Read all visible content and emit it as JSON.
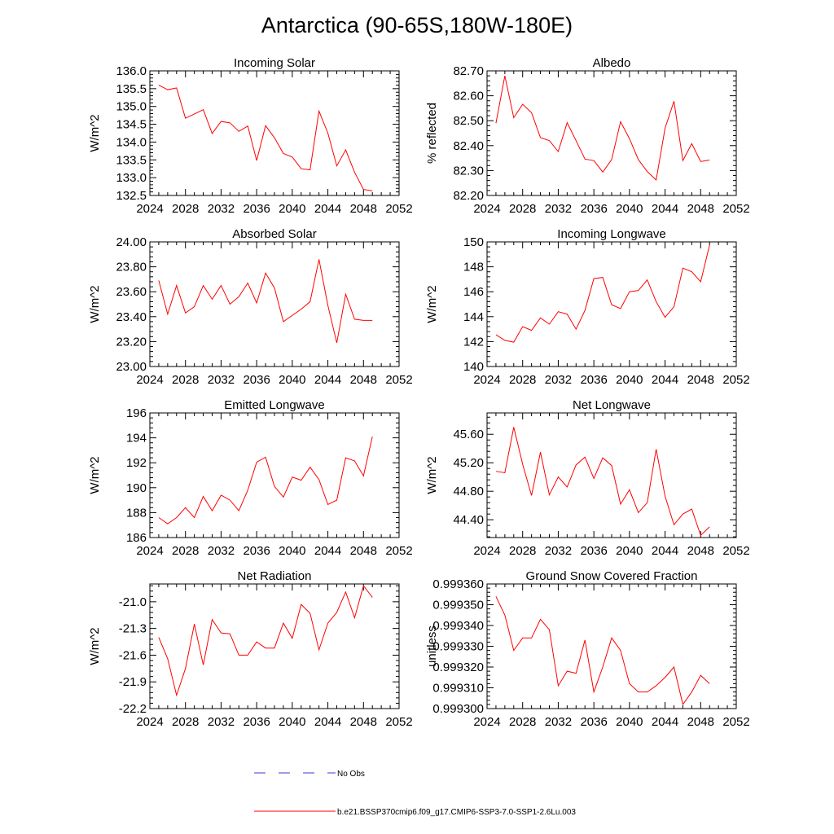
{
  "page_title": "Antarctica (90-65S,180W-180E)",
  "legend": {
    "obs_label": "No Obs",
    "obs_color": "#3b3bd1",
    "model_label": "b.e21.BSSP370cmip6.f09_g17.CMIP6-SSP3-7.0-SSP1-2.6Lu.003",
    "model_color": "#ff0000"
  },
  "chart_data": [
    {
      "type": "line",
      "title": "Incoming Solar",
      "xlabel": "",
      "ylabel": "W/m^2",
      "xlim": [
        2024,
        2052
      ],
      "ylim": [
        132.5,
        136.0
      ],
      "x_ticks": [
        2024,
        2028,
        2032,
        2036,
        2040,
        2044,
        2048,
        2052
      ],
      "x_tick_labels": [
        "2024",
        "2028",
        "2032",
        "2036",
        "2040",
        "2044",
        "2048",
        "2052"
      ],
      "y_ticks": [
        132.5,
        133.0,
        133.5,
        134.0,
        134.5,
        135.0,
        135.5,
        136.0
      ],
      "y_tick_labels": [
        "132.5",
        "133.0",
        "133.5",
        "134.0",
        "134.5",
        "135.0",
        "135.5",
        "136.0"
      ],
      "grid": false,
      "x": [
        2025,
        2026,
        2027,
        2028,
        2029,
        2030,
        2031,
        2032,
        2033,
        2034,
        2035,
        2036,
        2037,
        2038,
        2039,
        2040,
        2041,
        2042,
        2043,
        2044,
        2045,
        2046,
        2047,
        2048,
        2049
      ],
      "series": [
        {
          "color": "#ff0000",
          "values": [
            135.6,
            135.47,
            135.52,
            134.67,
            134.79,
            134.91,
            134.24,
            134.58,
            134.54,
            134.3,
            134.45,
            133.48,
            134.46,
            134.12,
            133.68,
            133.58,
            133.25,
            133.22,
            134.87,
            134.25,
            133.33,
            133.78,
            133.15,
            132.67,
            132.63
          ]
        }
      ]
    },
    {
      "type": "line",
      "title": "Albedo",
      "xlabel": "",
      "ylabel": "% reflected",
      "xlim": [
        2024,
        2052
      ],
      "ylim": [
        82.2,
        82.7
      ],
      "x_ticks": [
        2024,
        2028,
        2032,
        2036,
        2040,
        2044,
        2048,
        2052
      ],
      "x_tick_labels": [
        "2024",
        "2028",
        "2032",
        "2036",
        "2040",
        "2044",
        "2048",
        "2052"
      ],
      "y_ticks": [
        82.2,
        82.3,
        82.4,
        82.5,
        82.6,
        82.7
      ],
      "y_tick_labels": [
        "82.20",
        "82.30",
        "82.40",
        "82.50",
        "82.60",
        "82.70"
      ],
      "grid": false,
      "x": [
        2025,
        2026,
        2027,
        2028,
        2029,
        2030,
        2031,
        2032,
        2033,
        2034,
        2035,
        2036,
        2037,
        2038,
        2039,
        2040,
        2041,
        2042,
        2043,
        2044,
        2045,
        2046,
        2047,
        2048,
        2049
      ],
      "series": [
        {
          "color": "#ff0000",
          "values": [
            82.49,
            82.68,
            82.512,
            82.566,
            82.532,
            82.432,
            82.42,
            82.376,
            82.492,
            82.42,
            82.346,
            82.34,
            82.294,
            82.344,
            82.496,
            82.428,
            82.344,
            82.296,
            82.262,
            82.47,
            82.578,
            82.34,
            82.408,
            82.336,
            82.342
          ]
        }
      ]
    },
    {
      "type": "line",
      "title": "Absorbed Solar",
      "xlabel": "",
      "ylabel": "W/m^2",
      "xlim": [
        2024,
        2052
      ],
      "ylim": [
        23.0,
        24.0
      ],
      "x_ticks": [
        2024,
        2028,
        2032,
        2036,
        2040,
        2044,
        2048,
        2052
      ],
      "x_tick_labels": [
        "2024",
        "2028",
        "2032",
        "2036",
        "2040",
        "2044",
        "2048",
        "2052"
      ],
      "y_ticks": [
        23.0,
        23.2,
        23.4,
        23.6,
        23.8,
        24.0
      ],
      "y_tick_labels": [
        "23.00",
        "23.20",
        "23.40",
        "23.60",
        "23.80",
        "24.00"
      ],
      "grid": false,
      "x": [
        2025,
        2026,
        2027,
        2028,
        2029,
        2030,
        2031,
        2032,
        2033,
        2034,
        2035,
        2036,
        2037,
        2038,
        2039,
        2040,
        2041,
        2042,
        2043,
        2044,
        2045,
        2046,
        2047,
        2048,
        2049
      ],
      "series": [
        {
          "color": "#ff0000",
          "values": [
            23.69,
            23.42,
            23.65,
            23.43,
            23.48,
            23.65,
            23.54,
            23.65,
            23.5,
            23.56,
            23.67,
            23.51,
            23.75,
            23.63,
            23.36,
            23.41,
            23.46,
            23.52,
            23.86,
            23.49,
            23.19,
            23.58,
            23.38,
            23.37,
            23.37
          ]
        }
      ]
    },
    {
      "type": "line",
      "title": "Incoming Longwave",
      "xlabel": "",
      "ylabel": "W/m^2",
      "xlim": [
        2024,
        2052
      ],
      "ylim": [
        140,
        150
      ],
      "x_ticks": [
        2024,
        2028,
        2032,
        2036,
        2040,
        2044,
        2048,
        2052
      ],
      "x_tick_labels": [
        "2024",
        "2028",
        "2032",
        "2036",
        "2040",
        "2044",
        "2048",
        "2052"
      ],
      "y_ticks": [
        140,
        142,
        144,
        146,
        148,
        150
      ],
      "y_tick_labels": [
        "140",
        "142",
        "144",
        "146",
        "148",
        "150"
      ],
      "grid": false,
      "x": [
        2025,
        2026,
        2027,
        2028,
        2029,
        2030,
        2031,
        2032,
        2033,
        2034,
        2035,
        2036,
        2037,
        2038,
        2039,
        2040,
        2041,
        2042,
        2043,
        2044,
        2045,
        2046,
        2047,
        2048,
        2049
      ],
      "series": [
        {
          "color": "#ff0000",
          "values": [
            142.55,
            142.1,
            141.95,
            143.2,
            142.9,
            143.9,
            143.4,
            144.4,
            144.2,
            143.0,
            144.5,
            147.05,
            147.15,
            144.95,
            144.65,
            146.0,
            146.1,
            146.95,
            145.2,
            143.95,
            144.8,
            147.9,
            147.6,
            146.8,
            149.75
          ]
        }
      ]
    },
    {
      "type": "line",
      "title": "Emitted Longwave",
      "xlabel": "",
      "ylabel": "W/m^2",
      "xlim": [
        2024,
        2052
      ],
      "ylim": [
        186,
        196
      ],
      "x_ticks": [
        2024,
        2028,
        2032,
        2036,
        2040,
        2044,
        2048,
        2052
      ],
      "x_tick_labels": [
        "2024",
        "2028",
        "2032",
        "2036",
        "2040",
        "2044",
        "2048",
        "2052"
      ],
      "y_ticks": [
        186,
        188,
        190,
        192,
        194,
        196
      ],
      "y_tick_labels": [
        "186",
        "188",
        "190",
        "192",
        "194",
        "196"
      ],
      "grid": false,
      "x": [
        2025,
        2026,
        2027,
        2028,
        2029,
        2030,
        2031,
        2032,
        2033,
        2034,
        2035,
        2036,
        2037,
        2038,
        2039,
        2040,
        2041,
        2042,
        2043,
        2044,
        2045,
        2046,
        2047,
        2048,
        2049
      ],
      "series": [
        {
          "color": "#ff0000",
          "values": [
            187.6,
            187.1,
            187.6,
            188.4,
            187.6,
            189.3,
            188.15,
            189.4,
            189.0,
            188.15,
            189.8,
            192.05,
            192.45,
            190.1,
            189.25,
            190.85,
            190.6,
            191.65,
            190.65,
            188.65,
            189.0,
            192.4,
            192.15,
            190.95,
            194.1
          ]
        }
      ]
    },
    {
      "type": "line",
      "title": "Net Longwave",
      "xlabel": "",
      "ylabel": "W/m^2",
      "xlim": [
        2024,
        2052
      ],
      "ylim": [
        44.15,
        45.9
      ],
      "x_ticks": [
        2024,
        2028,
        2032,
        2036,
        2040,
        2044,
        2048,
        2052
      ],
      "x_tick_labels": [
        "2024",
        "2028",
        "2032",
        "2036",
        "2040",
        "2044",
        "2048",
        "2052"
      ],
      "y_ticks": [
        44.4,
        44.8,
        45.2,
        45.6
      ],
      "y_tick_labels": [
        "44.40",
        "44.80",
        "45.20",
        "45.60"
      ],
      "grid": false,
      "x": [
        2025,
        2026,
        2027,
        2028,
        2029,
        2030,
        2031,
        2032,
        2033,
        2034,
        2035,
        2036,
        2037,
        2038,
        2039,
        2040,
        2041,
        2042,
        2043,
        2044,
        2045,
        2046,
        2047,
        2048,
        2049
      ],
      "series": [
        {
          "color": "#ff0000",
          "values": [
            45.08,
            45.06,
            45.7,
            45.18,
            44.74,
            45.35,
            44.75,
            45.0,
            44.86,
            45.17,
            45.28,
            44.98,
            45.27,
            45.16,
            44.62,
            44.82,
            44.5,
            44.64,
            45.39,
            44.73,
            44.33,
            44.48,
            44.55,
            44.18,
            44.3
          ]
        }
      ]
    },
    {
      "type": "line",
      "title": "Net Radiation",
      "xlabel": "",
      "ylabel": "W/m^2",
      "xlim": [
        2024,
        2052
      ],
      "ylim": [
        -22.2,
        -20.8
      ],
      "x_ticks": [
        2024,
        2028,
        2032,
        2036,
        2040,
        2044,
        2048,
        2052
      ],
      "x_tick_labels": [
        "2024",
        "2028",
        "2032",
        "2036",
        "2040",
        "2044",
        "2048",
        "2052"
      ],
      "y_ticks": [
        -22.2,
        -21.9,
        -21.6,
        -21.3,
        -21.0
      ],
      "y_tick_labels": [
        "-22.2",
        "-21.9",
        "-21.6",
        "-21.3",
        "-21.0"
      ],
      "grid": false,
      "x": [
        2025,
        2026,
        2027,
        2028,
        2029,
        2030,
        2031,
        2032,
        2033,
        2034,
        2035,
        2036,
        2037,
        2038,
        2039,
        2040,
        2041,
        2042,
        2043,
        2044,
        2045,
        2046,
        2047,
        2048,
        2049
      ],
      "series": [
        {
          "color": "#ff0000",
          "values": [
            -21.4,
            -21.64,
            -22.05,
            -21.75,
            -21.25,
            -21.71,
            -21.2,
            -21.35,
            -21.36,
            -21.6,
            -21.6,
            -21.45,
            -21.52,
            -21.52,
            -21.24,
            -21.41,
            -21.03,
            -21.13,
            -21.54,
            -21.24,
            -21.12,
            -20.89,
            -21.18,
            -20.82,
            -20.95
          ]
        }
      ]
    },
    {
      "type": "line",
      "title": "Ground Snow Covered Fraction",
      "xlabel": "",
      "ylabel": "unitless",
      "xlim": [
        2024,
        2052
      ],
      "ylim": [
        0.9993,
        0.99936
      ],
      "x_ticks": [
        2024,
        2028,
        2032,
        2036,
        2040,
        2044,
        2048,
        2052
      ],
      "x_tick_labels": [
        "2024",
        "2028",
        "2032",
        "2036",
        "2040",
        "2044",
        "2048",
        "2052"
      ],
      "y_ticks": [
        0.9993,
        0.99931,
        0.99932,
        0.99933,
        0.99934,
        0.99935,
        0.99936
      ],
      "y_tick_labels": [
        "0.999300",
        "0.999310",
        "0.999320",
        "0.999330",
        "0.999340",
        "0.999350",
        "0.999360"
      ],
      "grid": false,
      "x": [
        2025,
        2026,
        2027,
        2028,
        2029,
        2030,
        2031,
        2032,
        2033,
        2034,
        2035,
        2036,
        2037,
        2038,
        2039,
        2040,
        2041,
        2042,
        2043,
        2044,
        2045,
        2046,
        2047,
        2048,
        2049
      ],
      "series": [
        {
          "color": "#ff0000",
          "values": [
            0.999354,
            0.999345,
            0.999328,
            0.999334,
            0.999334,
            0.999343,
            0.999338,
            0.999311,
            0.999318,
            0.999317,
            0.999333,
            0.999308,
            0.99932,
            0.999334,
            0.999328,
            0.999312,
            0.999308,
            0.999308,
            0.999311,
            0.999315,
            0.99932,
            0.999302,
            0.999308,
            0.999316,
            0.999312
          ]
        }
      ]
    }
  ]
}
